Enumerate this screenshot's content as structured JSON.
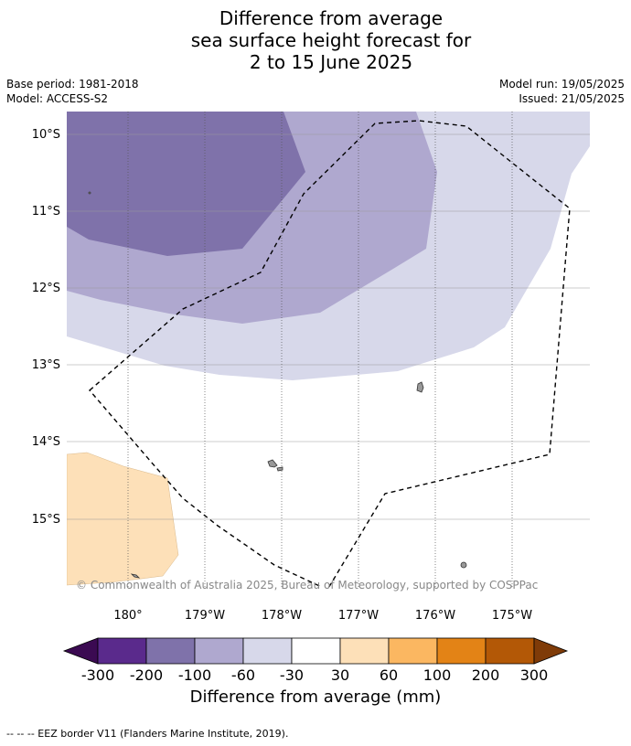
{
  "title": {
    "line1": "Difference from average",
    "line2": "sea surface height forecast for",
    "line3": "2 to 15 June 2025"
  },
  "meta": {
    "base_period": "Base period: 1981-2018",
    "model": "Model: ACCESS-S2",
    "model_run": "Model run: 19/05/2025",
    "issued": "Issued: 21/05/2025"
  },
  "map": {
    "lat_labels": [
      "10°S",
      "11°S",
      "12°S",
      "13°S",
      "14°S",
      "15°S"
    ],
    "lon_labels": [
      "180°",
      "179°W",
      "178°W",
      "177°W",
      "176°W",
      "175°W"
    ],
    "copyright": "© Commonwealth of Australia 2025, Bureau of Meteorology, supported by COSPPac",
    "colors": {
      "n100_200": "#7f72aa",
      "n60_100": "#afa8cf",
      "n30_60": "#d7d8ea",
      "p30_60": "#fde0b8",
      "land": "#999999"
    }
  },
  "colorbar": {
    "title": "Difference from average (mm)",
    "tick_labels": [
      "-300",
      "-200",
      "-100",
      "-60",
      "-30",
      "30",
      "60",
      "100",
      "200",
      "300"
    ],
    "colors": [
      "#3b0a52",
      "#5a2a8c",
      "#7f72aa",
      "#afa8cf",
      "#d7d8ea",
      "#ffffff",
      "#fde0b8",
      "#fbb761",
      "#e38316",
      "#b35806",
      "#7f3b08"
    ]
  },
  "footnote": "--  --  -- EEZ border V11 (Flanders Marine Institute, 2019)."
}
